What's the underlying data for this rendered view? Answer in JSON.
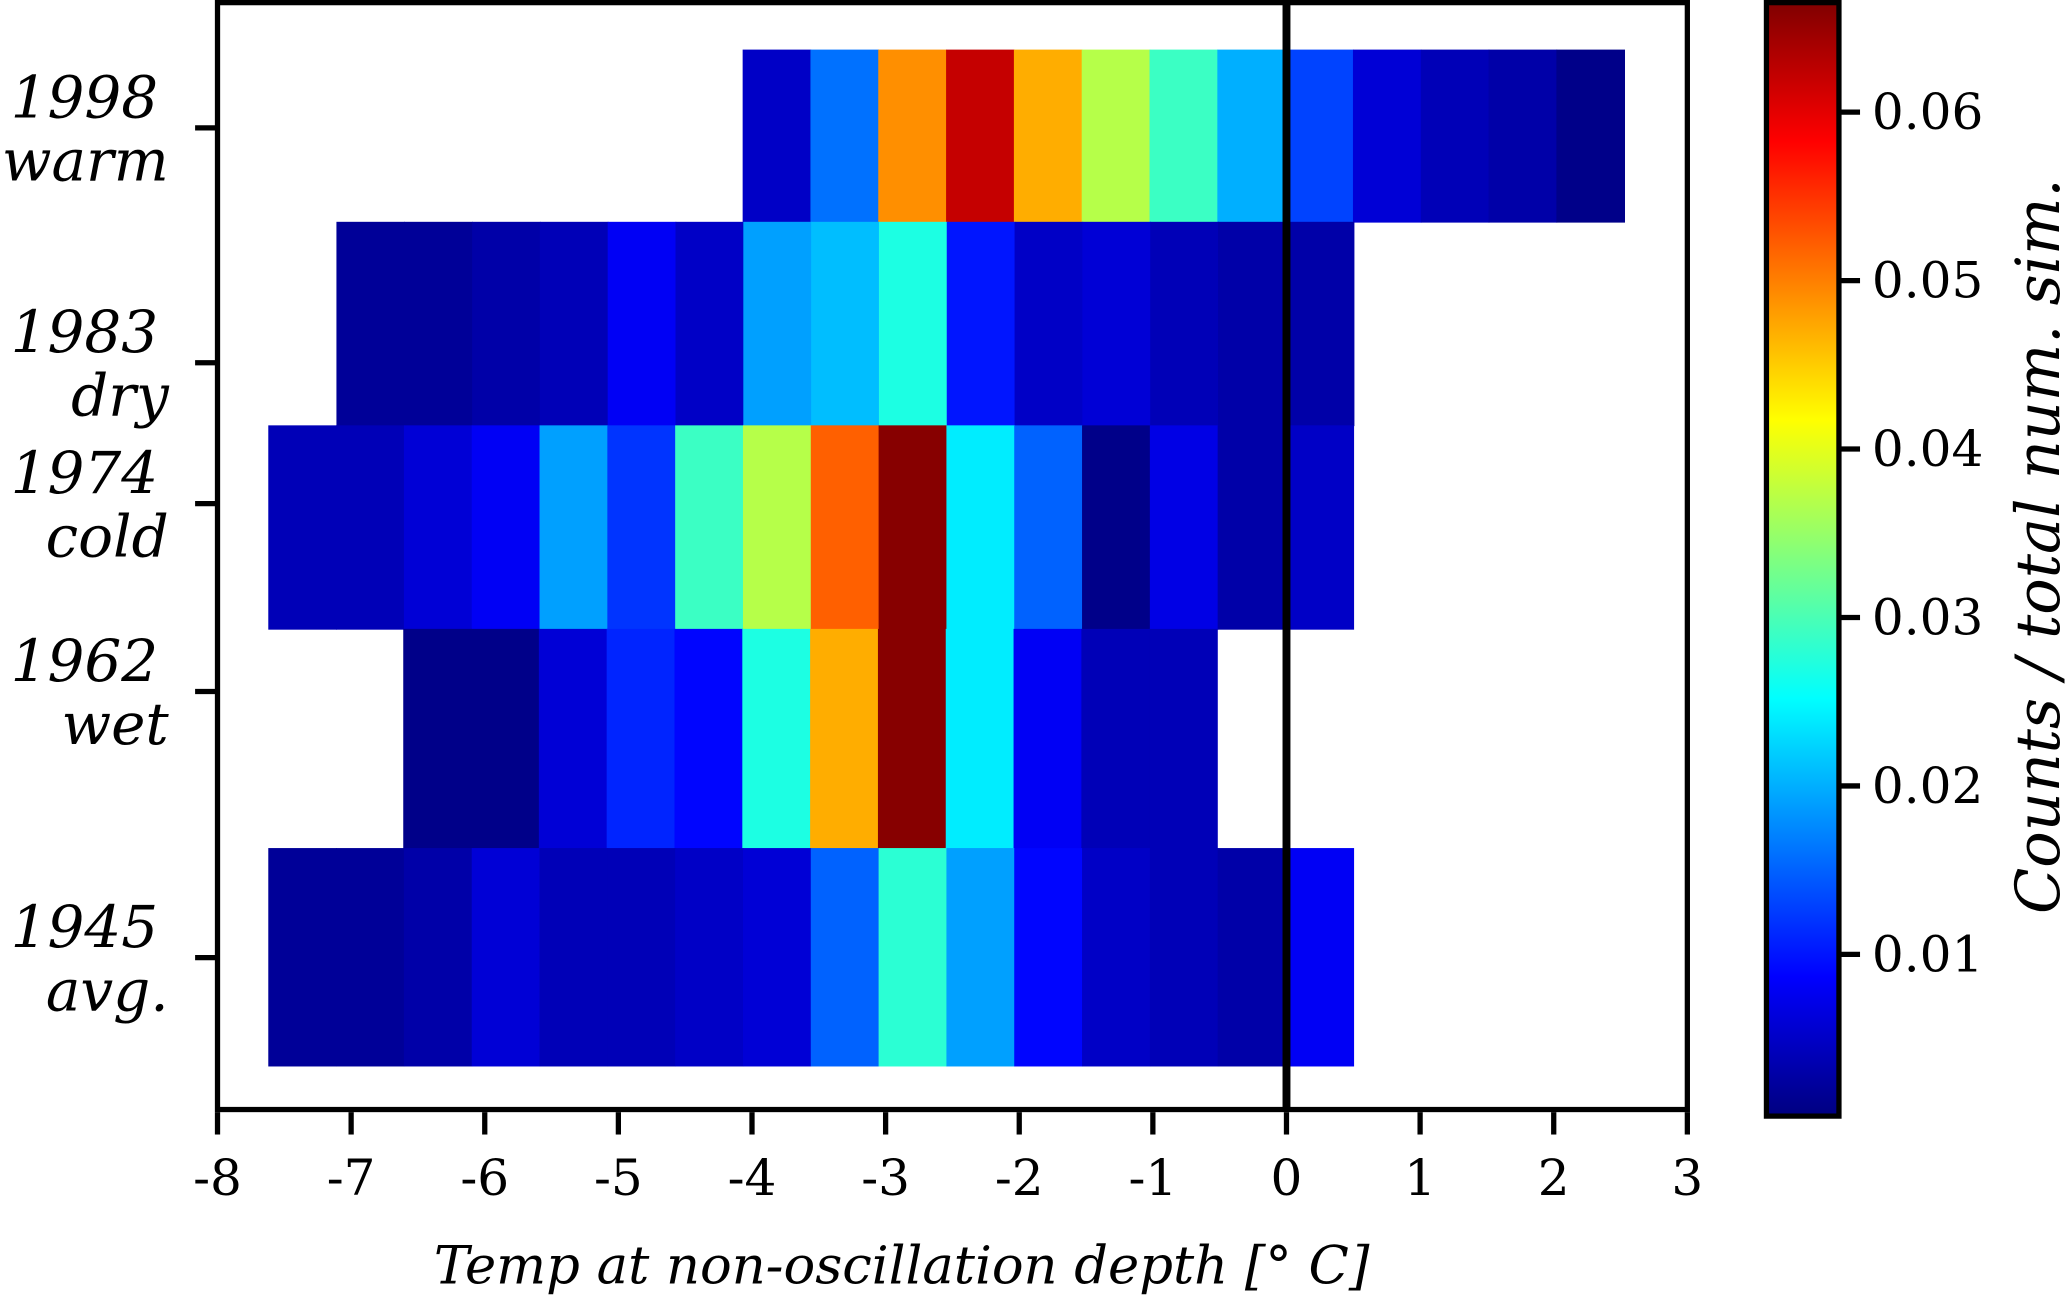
{
  "chart_data": {
    "type": "heatmap",
    "title": "",
    "xlabel": "Temp at non-oscillation depth [° C]",
    "ylabel": "",
    "xlim": [
      -8,
      3
    ],
    "ylim": [
      1935.3,
      2006
    ],
    "xticks": [
      -8,
      -7,
      -6,
      -5,
      -4,
      -3,
      -2,
      -1,
      0,
      1,
      2,
      3
    ],
    "xtick_labels": [
      "-8",
      "-7",
      "-6",
      "-5",
      "-4",
      "-3",
      "-2",
      "-1",
      "0",
      "1",
      "2",
      "3"
    ],
    "vertical_line_x": 0,
    "bin_width": 0.5075,
    "colormap": "jet",
    "colorbar": {
      "label": "Counts / total num. sim.",
      "range": [
        0.0004,
        0.0665
      ],
      "ticks": [
        0.01,
        0.02,
        0.03,
        0.04,
        0.05,
        0.06
      ],
      "tick_labels": [
        "0.01",
        "0.02",
        "0.03",
        "0.04",
        "0.05",
        "0.06"
      ]
    },
    "rows": [
      {
        "year": "1998",
        "label": "warm",
        "tick": 1998,
        "y_range": [
          1992,
          2003
        ],
        "x_start": -4.07,
        "values": [
          0.005,
          0.016,
          0.049,
          0.062,
          0.047,
          0.037,
          0.029,
          0.02,
          0.013,
          0.006,
          0.004,
          0.003,
          0.001
        ]
      },
      {
        "year": "1983",
        "label": "dry",
        "tick": 1983,
        "y_range": [
          1979,
          1992
        ],
        "x_start": -7.11,
        "values": [
          0.002,
          0.002,
          0.003,
          0.004,
          0.008,
          0.005,
          0.019,
          0.021,
          0.027,
          0.01,
          0.005,
          0.006,
          0.004,
          0.003,
          0.003
        ]
      },
      {
        "year": "1974",
        "label": "cold",
        "tick": 1974,
        "y_range": [
          1966,
          1979
        ],
        "x_start": -7.62,
        "values": [
          0.004,
          0.004,
          0.006,
          0.008,
          0.019,
          0.012,
          0.029,
          0.037,
          0.052,
          0.066,
          0.024,
          0.015,
          0.001,
          0.007,
          0.003,
          0.005
        ]
      },
      {
        "year": "1962",
        "label": "wet",
        "tick": 1962,
        "y_range": [
          1952,
          1966
        ],
        "x_start": -6.61,
        "values": [
          0.001,
          0.001,
          0.006,
          0.011,
          0.009,
          0.027,
          0.047,
          0.066,
          0.024,
          0.008,
          0.004,
          0.004
        ]
      },
      {
        "year": "1945",
        "label": "avg.",
        "tick": 1945,
        "y_range": [
          1938.1,
          1952
        ],
        "x_start": -7.62,
        "values": [
          0.002,
          0.002,
          0.003,
          0.006,
          0.004,
          0.004,
          0.005,
          0.006,
          0.015,
          0.028,
          0.019,
          0.009,
          0.005,
          0.004,
          0.003,
          0.008
        ]
      }
    ]
  }
}
